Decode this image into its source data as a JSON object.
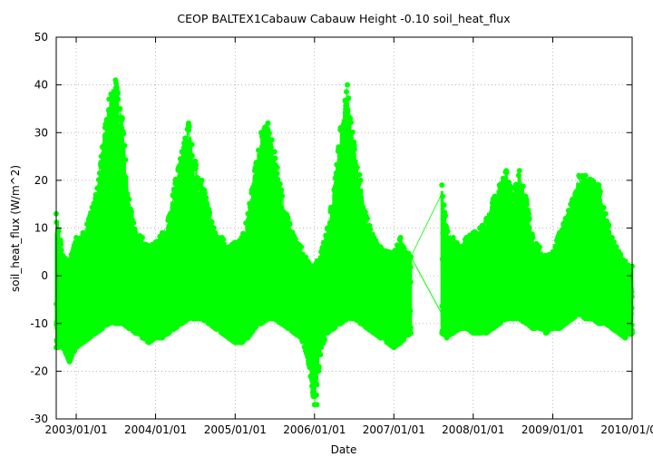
{
  "chart_data": {
    "type": "scatter",
    "title": "CEOP BALTEX1Cabauw Cabauw Height -0.10 soil_heat_flux",
    "xlabel": "Date",
    "ylabel": "soil_heat_flux (W/m^2)",
    "xlim": [
      "2002-10-01",
      "2010-01-01"
    ],
    "ylim": [
      -30,
      50
    ],
    "x_ticks": [
      "2003/01/01",
      "2004/01/01",
      "2005/01/01",
      "2006/01/01",
      "2007/01/01",
      "2008/01/01",
      "2009/01/01",
      "2010/01/01"
    ],
    "y_ticks": [
      -30,
      -20,
      -10,
      0,
      10,
      20,
      30,
      40,
      50
    ],
    "grid": true,
    "legend": "none",
    "color": "#00ff00",
    "marker": "filled circle with connecting line",
    "data_gap": [
      "2007-03-20",
      "2007-08-10"
    ],
    "envelope": {
      "x": [
        "2002-10-01",
        "2002-11-01",
        "2002-12-01",
        "2003-01-01",
        "2003-02-01",
        "2003-03-01",
        "2003-04-01",
        "2003-05-01",
        "2003-06-01",
        "2003-07-01",
        "2003-08-01",
        "2003-09-01",
        "2003-10-01",
        "2003-11-01",
        "2003-12-01",
        "2004-01-01",
        "2004-02-01",
        "2004-03-01",
        "2004-04-01",
        "2004-05-01",
        "2004-06-01",
        "2004-07-01",
        "2004-08-01",
        "2004-09-01",
        "2004-10-01",
        "2004-11-01",
        "2004-12-01",
        "2005-01-01",
        "2005-02-01",
        "2005-03-01",
        "2005-04-01",
        "2005-05-01",
        "2005-06-01",
        "2005-07-01",
        "2005-08-01",
        "2005-09-01",
        "2005-10-01",
        "2005-11-01",
        "2005-12-01",
        "2006-01-01",
        "2006-02-01",
        "2006-03-01",
        "2006-04-01",
        "2006-05-01",
        "2006-06-01",
        "2006-07-01",
        "2006-08-01",
        "2006-09-01",
        "2006-10-01",
        "2006-11-01",
        "2006-12-01",
        "2007-01-01",
        "2007-02-01",
        "2007-03-20",
        "2007-08-10",
        "2007-09-01",
        "2007-10-01",
        "2007-11-01",
        "2007-12-01",
        "2008-01-01",
        "2008-02-01",
        "2008-03-01",
        "2008-04-01",
        "2008-05-01",
        "2008-06-01",
        "2008-07-01",
        "2008-08-01",
        "2008-09-01",
        "2008-10-01",
        "2008-11-01",
        "2008-12-01",
        "2009-01-01",
        "2009-02-01",
        "2009-03-01",
        "2009-04-01",
        "2009-05-01",
        "2009-06-01",
        "2009-07-01",
        "2009-08-01",
        "2009-09-01",
        "2009-10-01",
        "2009-11-01",
        "2009-12-01",
        "2010-01-01"
      ],
      "max": [
        13,
        4,
        3,
        8,
        9,
        12,
        17,
        27,
        37,
        41,
        33,
        16,
        9,
        8,
        6,
        7,
        9,
        12,
        20,
        26,
        32,
        24,
        20,
        14,
        9,
        8,
        6,
        7,
        8,
        13,
        22,
        30,
        32,
        26,
        18,
        12,
        8,
        6,
        3,
        2,
        5,
        10,
        18,
        31,
        40,
        28,
        20,
        12,
        8,
        6,
        5,
        5,
        8,
        4,
        19,
        10,
        8,
        6,
        8,
        9,
        10,
        12,
        16,
        19,
        22,
        17,
        22,
        16,
        8,
        6,
        4,
        5,
        9,
        12,
        16,
        21,
        21,
        20,
        19,
        13,
        8,
        5,
        3,
        2
      ],
      "min": [
        -15,
        -15,
        -18,
        -15,
        -14,
        -13,
        -12,
        -11,
        -10,
        -10,
        -10,
        -11,
        -12,
        -13,
        -14,
        -13,
        -13,
        -12,
        -11,
        -10,
        -9,
        -9,
        -9,
        -10,
        -11,
        -12,
        -13,
        -14,
        -14,
        -13,
        -11,
        -10,
        -9,
        -9,
        -10,
        -11,
        -12,
        -13,
        -17,
        -27,
        -15,
        -12,
        -11,
        -10,
        -9,
        -9,
        -10,
        -11,
        -12,
        -13,
        -14,
        -15,
        -14,
        -12,
        -12,
        -13,
        -12,
        -11,
        -11,
        -12,
        -12,
        -12,
        -11,
        -10,
        -9,
        -9,
        -9,
        -10,
        -11,
        -11,
        -12,
        -11,
        -11,
        -10,
        -9,
        -8,
        -9,
        -9,
        -10,
        -10,
        -11,
        -12,
        -13,
        -12
      ]
    },
    "isolated_points": [
      {
        "x": "2006-01-10",
        "y": -25
      },
      {
        "x": "2006-01-12",
        "y": -27
      }
    ]
  }
}
